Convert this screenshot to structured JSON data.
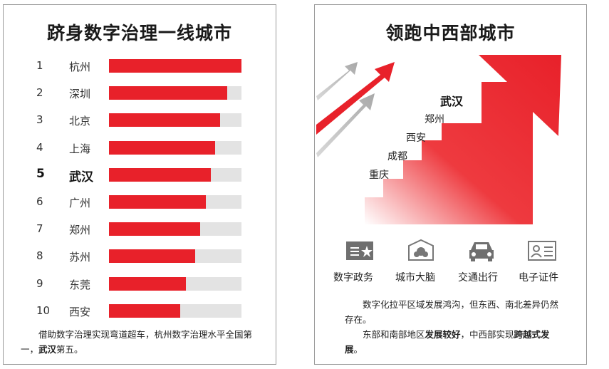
{
  "left": {
    "title": "跻身数字治理一线城市",
    "ranking": [
      {
        "rank": "1",
        "city": "杭州",
        "value": 1.0,
        "highlight": false
      },
      {
        "rank": "2",
        "city": "深圳",
        "value": 0.89,
        "highlight": false
      },
      {
        "rank": "3",
        "city": "北京",
        "value": 0.84,
        "highlight": false
      },
      {
        "rank": "4",
        "city": "上海",
        "value": 0.8,
        "highlight": false
      },
      {
        "rank": "5",
        "city": "武汉",
        "value": 0.77,
        "highlight": true
      },
      {
        "rank": "6",
        "city": "广州",
        "value": 0.73,
        "highlight": false
      },
      {
        "rank": "7",
        "city": "郑州",
        "value": 0.69,
        "highlight": false
      },
      {
        "rank": "8",
        "city": "苏州",
        "value": 0.65,
        "highlight": false
      },
      {
        "rank": "9",
        "city": "东莞",
        "value": 0.58,
        "highlight": false
      },
      {
        "rank": "10",
        "city": "西安",
        "value": 0.54,
        "highlight": false
      }
    ],
    "note_part1": "借助数字治理实现弯道超车，杭州数字治理水平全国第一，",
    "note_bold": "武汉",
    "note_part2": "第五。"
  },
  "right": {
    "title": "领跑中西部城市",
    "stairs": [
      {
        "city": "武汉",
        "highlight": true
      },
      {
        "city": "郑州",
        "highlight": false
      },
      {
        "city": "西安",
        "highlight": false
      },
      {
        "city": "成都",
        "highlight": false
      },
      {
        "city": "重庆",
        "highlight": false
      }
    ],
    "icons": [
      {
        "label": "数字政务",
        "icon": "government-card-icon"
      },
      {
        "label": "城市大脑",
        "icon": "city-brain-icon"
      },
      {
        "label": "交通出行",
        "icon": "car-icon"
      },
      {
        "label": "电子证件",
        "icon": "id-card-icon"
      }
    ],
    "note1": "数字化拉平区域发展鸿沟，但东西、南北差异仍然存在。",
    "note2_a": "东部和南部地区",
    "note2_b": "发展较好",
    "note2_c": "，中西部实现",
    "note2_d": "跨越式发展",
    "note2_e": "。"
  },
  "colors": {
    "accent": "#e8212a",
    "track": "#e3e3e3",
    "arrow_gray": "#a9a9a9"
  }
}
